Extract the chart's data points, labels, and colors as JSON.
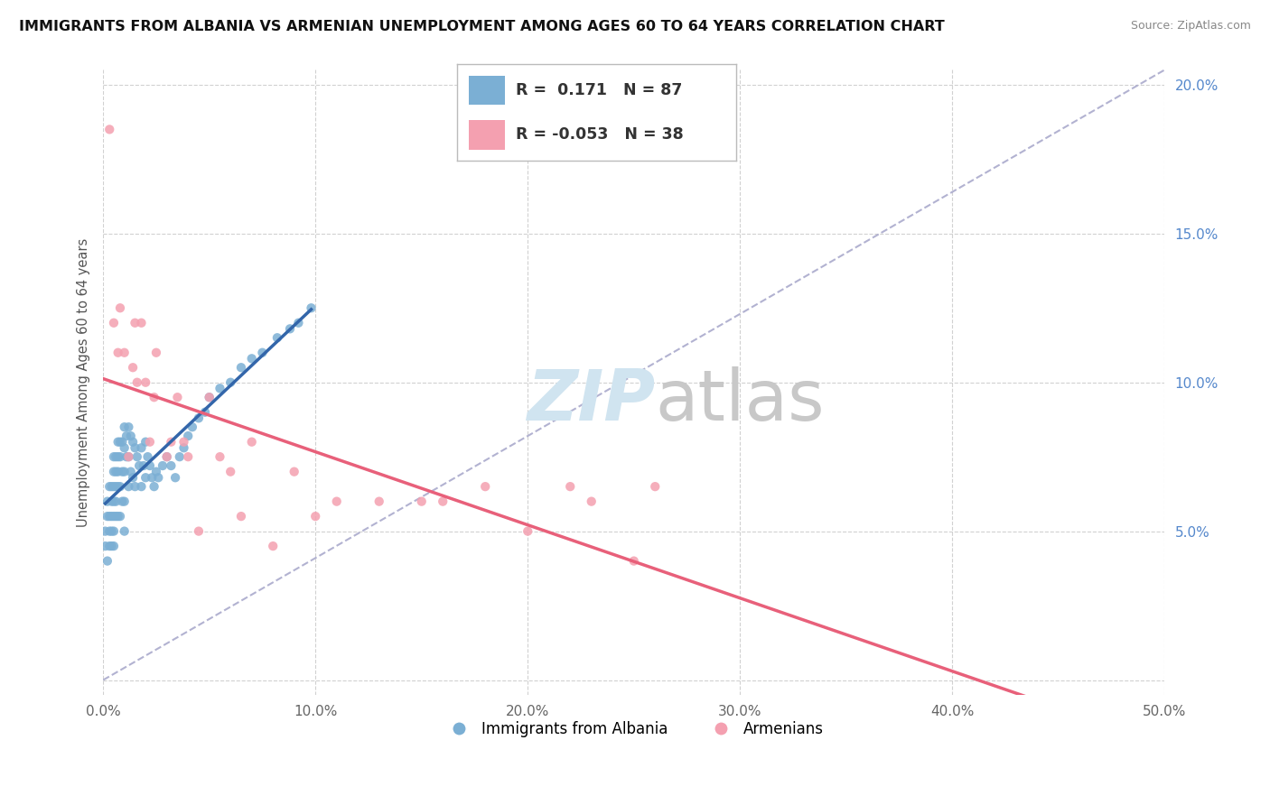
{
  "title": "IMMIGRANTS FROM ALBANIA VS ARMENIAN UNEMPLOYMENT AMONG AGES 60 TO 64 YEARS CORRELATION CHART",
  "source": "Source: ZipAtlas.com",
  "ylabel": "Unemployment Among Ages 60 to 64 years",
  "xlim": [
    0.0,
    0.5
  ],
  "ylim": [
    -0.005,
    0.205
  ],
  "xticks": [
    0.0,
    0.1,
    0.2,
    0.3,
    0.4,
    0.5
  ],
  "xticklabels": [
    "0.0%",
    "10.0%",
    "20.0%",
    "30.0%",
    "40.0%",
    "50.0%"
  ],
  "yticks": [
    0.0,
    0.05,
    0.1,
    0.15,
    0.2
  ],
  "yticklabels": [
    "",
    "5.0%",
    "10.0%",
    "15.0%",
    "20.0%"
  ],
  "albania_R": 0.171,
  "albania_N": 87,
  "armenian_R": -0.053,
  "armenian_N": 38,
  "albania_color": "#7BAFD4",
  "armenian_color": "#F4A0B0",
  "albania_trend_color": "#3366AA",
  "armenian_trend_color": "#E8607A",
  "watermark_color": "#D0E4F0",
  "background_color": "#FFFFFF",
  "grid_color": "#CCCCCC",
  "albania_x": [
    0.001,
    0.001,
    0.002,
    0.002,
    0.002,
    0.003,
    0.003,
    0.003,
    0.003,
    0.004,
    0.004,
    0.004,
    0.004,
    0.004,
    0.005,
    0.005,
    0.005,
    0.005,
    0.005,
    0.005,
    0.005,
    0.006,
    0.006,
    0.006,
    0.006,
    0.006,
    0.007,
    0.007,
    0.007,
    0.007,
    0.007,
    0.008,
    0.008,
    0.008,
    0.008,
    0.009,
    0.009,
    0.009,
    0.01,
    0.01,
    0.01,
    0.01,
    0.01,
    0.011,
    0.011,
    0.012,
    0.012,
    0.012,
    0.013,
    0.013,
    0.014,
    0.014,
    0.015,
    0.015,
    0.016,
    0.017,
    0.018,
    0.018,
    0.019,
    0.02,
    0.02,
    0.021,
    0.022,
    0.023,
    0.024,
    0.025,
    0.026,
    0.028,
    0.03,
    0.032,
    0.034,
    0.036,
    0.038,
    0.04,
    0.042,
    0.045,
    0.048,
    0.05,
    0.055,
    0.06,
    0.065,
    0.07,
    0.075,
    0.082,
    0.088,
    0.092,
    0.098
  ],
  "albania_y": [
    0.05,
    0.045,
    0.06,
    0.055,
    0.04,
    0.065,
    0.055,
    0.05,
    0.045,
    0.065,
    0.06,
    0.055,
    0.05,
    0.045,
    0.075,
    0.07,
    0.065,
    0.06,
    0.055,
    0.05,
    0.045,
    0.075,
    0.07,
    0.065,
    0.06,
    0.055,
    0.08,
    0.075,
    0.07,
    0.065,
    0.055,
    0.08,
    0.075,
    0.065,
    0.055,
    0.08,
    0.07,
    0.06,
    0.085,
    0.078,
    0.07,
    0.06,
    0.05,
    0.082,
    0.075,
    0.085,
    0.075,
    0.065,
    0.082,
    0.07,
    0.08,
    0.068,
    0.078,
    0.065,
    0.075,
    0.072,
    0.078,
    0.065,
    0.072,
    0.08,
    0.068,
    0.075,
    0.072,
    0.068,
    0.065,
    0.07,
    0.068,
    0.072,
    0.075,
    0.072,
    0.068,
    0.075,
    0.078,
    0.082,
    0.085,
    0.088,
    0.09,
    0.095,
    0.098,
    0.1,
    0.105,
    0.108,
    0.11,
    0.115,
    0.118,
    0.12,
    0.125
  ],
  "armenian_x": [
    0.003,
    0.005,
    0.007,
    0.008,
    0.01,
    0.012,
    0.014,
    0.015,
    0.016,
    0.018,
    0.02,
    0.022,
    0.024,
    0.025,
    0.03,
    0.032,
    0.035,
    0.038,
    0.04,
    0.045,
    0.05,
    0.055,
    0.06,
    0.065,
    0.07,
    0.08,
    0.09,
    0.1,
    0.11,
    0.13,
    0.15,
    0.16,
    0.18,
    0.2,
    0.22,
    0.23,
    0.25,
    0.26
  ],
  "armenian_y": [
    0.185,
    0.12,
    0.11,
    0.125,
    0.11,
    0.075,
    0.105,
    0.12,
    0.1,
    0.12,
    0.1,
    0.08,
    0.095,
    0.11,
    0.075,
    0.08,
    0.095,
    0.08,
    0.075,
    0.05,
    0.095,
    0.075,
    0.07,
    0.055,
    0.08,
    0.045,
    0.07,
    0.055,
    0.06,
    0.06,
    0.06,
    0.06,
    0.065,
    0.05,
    0.065,
    0.06,
    0.04,
    0.065
  ]
}
